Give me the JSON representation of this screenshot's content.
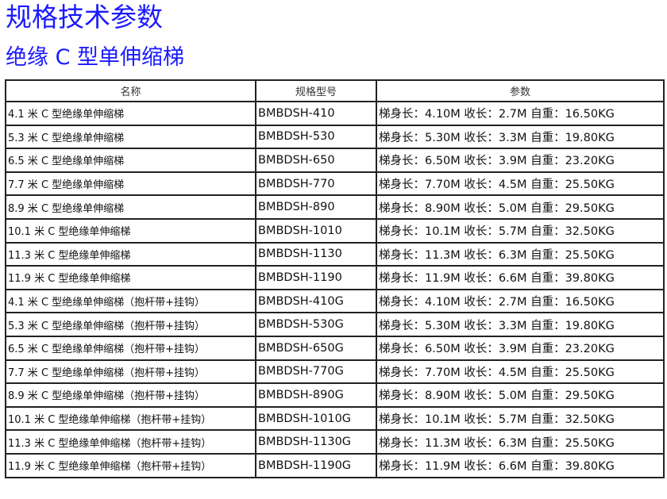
{
  "title": "规格技术参数",
  "subtitle": "绝缘 C 型单伸缩梯",
  "colors": {
    "heading": "#1a1aff"
  },
  "table": {
    "headers": [
      "名称",
      "规格型号",
      "参数"
    ],
    "rows": [
      [
        "4.1 米 C 型绝缘单伸缩梯",
        "BMBDSH-410",
        "梯身长：4.10M 收长：2.7M 自重：16.50KG"
      ],
      [
        "5.3 米 C 型绝缘单伸缩梯",
        "BMBDSH-530",
        "梯身长：5.30M 收长：3.3M 自重：19.80KG"
      ],
      [
        "6.5 米 C 型绝缘单伸缩梯",
        "BMBDSH-650",
        "梯身长：6.50M 收长：3.9M 自重：23.20KG"
      ],
      [
        "7.7 米 C 型绝缘单伸缩梯",
        "BMBDSH-770",
        "梯身长：7.70M 收长：4.5M 自重：25.50KG"
      ],
      [
        "8.9 米 C 型绝缘单伸缩梯",
        "BMBDSH-890",
        "梯身长：8.90M 收长：5.0M 自重：29.50KG"
      ],
      [
        "10.1 米 C 型绝缘单伸缩梯",
        "BMBDSH-1010",
        "梯身长：10.1M 收长：5.7M 自重：32.50KG"
      ],
      [
        "11.3 米 C 型绝缘单伸缩梯",
        "BMBDSH-1130",
        "梯身长：11.3M 收长：6.3M 自重：25.50KG"
      ],
      [
        "11.9 米 C 型绝缘单伸缩梯",
        "BMBDSH-1190",
        "梯身长：11.9M 收长：6.6M 自重：39.80KG"
      ],
      [
        "4.1 米 C 型绝缘单伸缩梯（抱杆带+挂钩）",
        "BMBDSH-410G",
        "梯身长：4.10M 收长：2.7M 自重：16.50KG"
      ],
      [
        "5.3 米 C 型绝缘单伸缩梯（抱杆带+挂钩）",
        "BMBDSH-530G",
        "梯身长：5.30M 收长：3.3M 自重：19.80KG"
      ],
      [
        "6.5 米 C 型绝缘单伸缩梯（抱杆带+挂钩）",
        "BMBDSH-650G",
        "梯身长：6.50M 收长：3.9M 自重：23.20KG"
      ],
      [
        "7.7 米 C 型绝缘单伸缩梯（抱杆带+挂钩）",
        "BMBDSH-770G",
        "梯身长：7.70M 收长：4.5M 自重：25.50KG"
      ],
      [
        "8.9 米 C 型绝缘单伸缩梯（抱杆带+挂钩）",
        "BMBDSH-890G",
        "梯身长：8.90M 收长：5.0M 自重：29.50KG"
      ],
      [
        "10.1 米 C 型绝缘单伸缩梯（抱杆带+挂钩）",
        "BMBDSH-1010G",
        "梯身长：10.1M 收长：5.7M 自重：32.50KG"
      ],
      [
        "11.3 米 C 型绝缘单伸缩梯（抱杆带+挂钩）",
        "BMBDSH-1130G",
        "梯身长：11.3M 收长：6.3M 自重：25.50KG"
      ],
      [
        "11.9 米 C 型绝缘单伸缩梯（抱杆带+挂钩）",
        "BMBDSH-1190G",
        "梯身长：11.9M 收长：6.6M 自重：39.80KG"
      ]
    ]
  }
}
